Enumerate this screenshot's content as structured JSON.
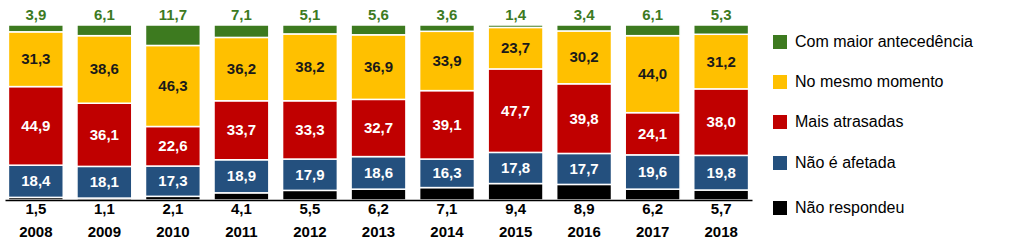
{
  "chart_data": {
    "type": "bar",
    "stacked": true,
    "data_labels": true,
    "tick_labels": "x",
    "legend": "right",
    "categories": [
      "2008",
      "2009",
      "2010",
      "2011",
      "2012",
      "2013",
      "2014",
      "2015",
      "2016",
      "2017",
      "2018"
    ],
    "ylim": [
      0,
      100
    ],
    "series": [
      {
        "name": "Não respondeu",
        "color": "#000000",
        "values": [
          1.5,
          1.1,
          2.1,
          4.1,
          5.5,
          6.2,
          7.1,
          9.4,
          8.9,
          6.2,
          5.7
        ],
        "value_labels": [
          "1,5",
          "1,1",
          "2,1",
          "4,1",
          "5,5",
          "6,2",
          "7,1",
          "9,4",
          "8,9",
          "6,2",
          "5,7"
        ]
      },
      {
        "name": "Não é afetada",
        "color": "#24507e",
        "values": [
          18.4,
          18.1,
          17.3,
          18.9,
          17.9,
          18.6,
          16.3,
          17.8,
          17.7,
          19.6,
          19.8
        ],
        "value_labels": [
          "18,4",
          "18,1",
          "17,3",
          "18,9",
          "17,9",
          "18,6",
          "16,3",
          "17,8",
          "17,7",
          "19,6",
          "19,8"
        ]
      },
      {
        "name": "Mais atrasadas",
        "color": "#c00000",
        "values": [
          44.9,
          36.1,
          22.6,
          33.7,
          33.3,
          32.7,
          39.1,
          47.7,
          39.8,
          24.1,
          38.0
        ],
        "value_labels": [
          "44,9",
          "36,1",
          "22,6",
          "33,7",
          "33,3",
          "32,7",
          "39,1",
          "47,7",
          "39,8",
          "24,1",
          "38,0"
        ]
      },
      {
        "name": "No mesmo momento",
        "color": "#ffc000",
        "values": [
          31.3,
          38.6,
          46.3,
          36.2,
          38.2,
          36.9,
          33.9,
          23.7,
          30.2,
          44.0,
          31.2
        ],
        "value_labels": [
          "31,3",
          "38,6",
          "46,3",
          "36,2",
          "38,2",
          "36,9",
          "33,9",
          "23,7",
          "30,2",
          "44,0",
          "31,2"
        ]
      },
      {
        "name": "Com maior antecedência",
        "color": "#3d7a1f",
        "values": [
          3.9,
          6.1,
          11.7,
          7.1,
          5.1,
          5.6,
          3.6,
          1.4,
          3.4,
          6.1,
          5.3
        ],
        "value_labels": [
          "3,9",
          "6,1",
          "11,7",
          "7,1",
          "5,1",
          "5,6",
          "3,6",
          "1,4",
          "3,4",
          "6,1",
          "5,3"
        ]
      }
    ]
  }
}
